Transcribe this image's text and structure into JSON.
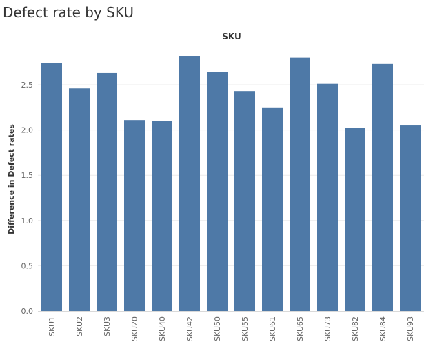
{
  "chart_data": {
    "type": "bar",
    "title": "Defect rate by SKU",
    "xlabel": "SKU",
    "ylabel": "Difference in Defect rates",
    "categories": [
      "SKU1",
      "SKU2",
      "SKU3",
      "SKU20",
      "SKU40",
      "SKU42",
      "SKU50",
      "SKU55",
      "SKU61",
      "SKU65",
      "SKU73",
      "SKU82",
      "SKU84",
      "SKU93"
    ],
    "values": [
      2.74,
      2.46,
      2.63,
      2.11,
      2.1,
      2.82,
      2.64,
      2.43,
      2.25,
      2.8,
      2.51,
      2.02,
      2.73,
      2.05
    ],
    "ylim": [
      0,
      2.87
    ],
    "yticks": [
      "0.0",
      "0.5",
      "1.0",
      "1.5",
      "2.0",
      "2.5"
    ],
    "grid": true,
    "bar_color": "#4e79a7"
  }
}
